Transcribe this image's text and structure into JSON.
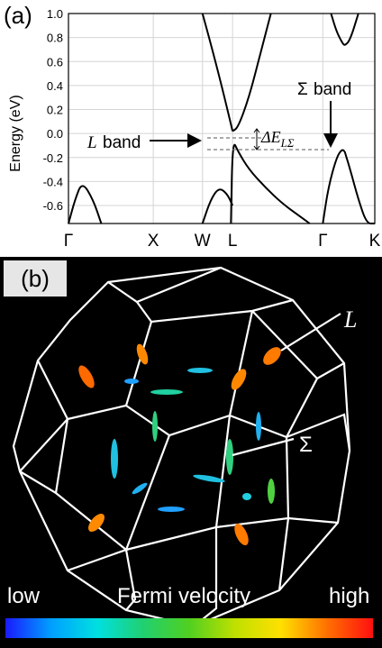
{
  "panel_a": {
    "tag": "(a)",
    "ylabel": "Energy (eV)",
    "y_ticks": [
      "1.0",
      "0.8",
      "0.6",
      "0.4",
      "0.2",
      "0.0",
      "-0.2",
      "-0.4",
      "-0.6"
    ],
    "x_ticks": [
      "Γ",
      "X",
      "W",
      "L",
      "Γ",
      "K"
    ],
    "annotations": {
      "l_band_letter": "L",
      "l_band_word": "band",
      "sigma_band_letter": "Σ",
      "sigma_band_word": "band",
      "delta_main": "ΔE",
      "delta_sub": "LΣ"
    }
  },
  "panel_b": {
    "tag": "(b)",
    "label_L": "L",
    "label_Sigma": "Σ",
    "legend_low": "low",
    "legend_title": "Fermi velocity",
    "legend_high": "high"
  },
  "chart_data": {
    "type": "line",
    "ylim": [
      -0.75,
      1.0
    ],
    "x_ticks": [
      "Γ",
      "X",
      "W",
      "L",
      "Γ",
      "K"
    ],
    "ylabel": "Energy (eV)",
    "grid": true,
    "series": [
      {
        "x": [
          0.0,
          0.12,
          0.25,
          0.45,
          0.6
        ],
        "y": [
          -0.75,
          -0.55,
          -0.4,
          -0.55,
          -0.75
        ]
      },
      {
        "x": [
          2.45,
          2.6,
          2.75,
          2.9,
          3.0
        ],
        "y": [
          -0.75,
          -0.55,
          -0.45,
          -0.5,
          -0.6
        ]
      },
      {
        "x": [
          2.97,
          3.0,
          3.1,
          3.3,
          3.6,
          3.9,
          4.2,
          4.41
        ],
        "y": [
          -0.75,
          -0.05,
          -0.15,
          -0.3,
          -0.45,
          -0.58,
          -0.68,
          -0.75
        ]
      },
      {
        "x": [
          2.45,
          2.6,
          2.8,
          3.0
        ],
        "y": [
          1.0,
          0.75,
          0.4,
          0.02
        ]
      },
      {
        "x": [
          3.0,
          3.1,
          3.3,
          3.5,
          3.7
        ],
        "y": [
          0.02,
          0.05,
          0.3,
          0.65,
          1.0
        ]
      },
      {
        "x": [
          4.65,
          4.75,
          4.9,
          5.0,
          5.05
        ],
        "y": [
          -0.75,
          -0.45,
          -0.2,
          -0.13,
          -0.15
        ]
      },
      {
        "x": [
          5.05,
          5.15,
          5.3,
          5.45,
          5.6
        ],
        "y": [
          -0.15,
          -0.3,
          -0.55,
          -0.75,
          -0.75
        ]
      },
      {
        "x": [
          4.8,
          4.9,
          5.0,
          5.05,
          5.15,
          5.3
        ],
        "y": [
          1.0,
          0.85,
          0.76,
          0.73,
          0.78,
          1.0
        ]
      }
    ],
    "annotations": [
      "L band",
      "Σ band",
      "ΔE_LΣ"
    ]
  }
}
